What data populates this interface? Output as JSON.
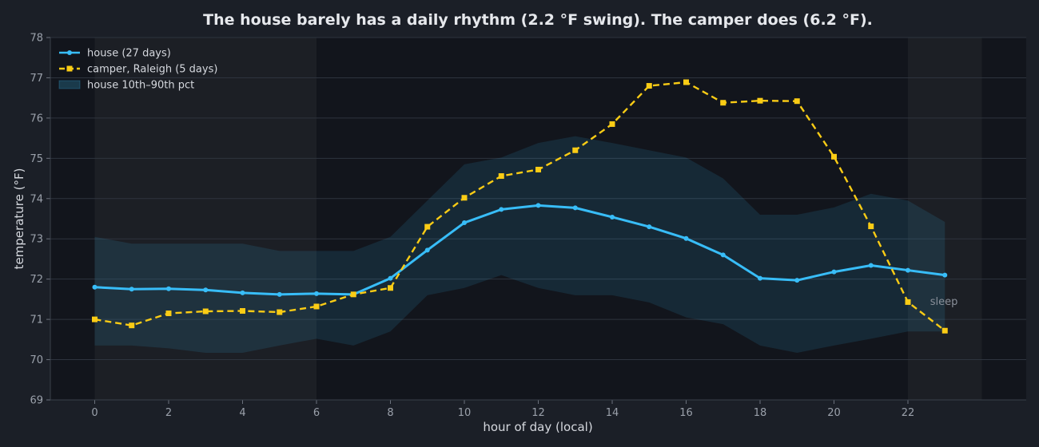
{
  "chart_data": {
    "type": "line",
    "title": "The house barely has a daily rhythm (2.2 °F swing). The camper does (6.2 °F).",
    "xlabel": "hour of day (local)",
    "ylabel": "temperature (°F)",
    "xlim": [
      -1.2,
      25.2
    ],
    "ylim": [
      69,
      78
    ],
    "x_ticks": [
      0,
      2,
      4,
      6,
      8,
      10,
      12,
      14,
      16,
      18,
      20,
      22
    ],
    "y_ticks": [
      69,
      70,
      71,
      72,
      73,
      74,
      75,
      76,
      77,
      78
    ],
    "grid": "horizontal",
    "legend_position": "top-left",
    "x": [
      0,
      1,
      2,
      3,
      4,
      5,
      6,
      7,
      8,
      9,
      10,
      11,
      12,
      13,
      14,
      15,
      16,
      17,
      18,
      19,
      20,
      21,
      22,
      23
    ],
    "series": [
      {
        "name": "house (27 days)",
        "color": "#38bdf8",
        "style": "solid",
        "marker": "circle",
        "values": [
          71.8,
          71.75,
          71.76,
          71.73,
          71.66,
          71.62,
          71.64,
          71.62,
          72.02,
          72.72,
          73.4,
          73.73,
          73.83,
          73.77,
          73.54,
          73.3,
          73.01,
          72.6,
          72.02,
          71.97,
          72.18,
          72.34,
          72.22,
          72.1
        ]
      },
      {
        "name": "camper, Raleigh (5 days)",
        "color": "#facc15",
        "style": "dashed",
        "marker": "square",
        "values": [
          71.0,
          70.85,
          71.15,
          71.2,
          71.21,
          71.18,
          71.32,
          71.62,
          71.78,
          73.3,
          74.02,
          74.56,
          74.72,
          75.2,
          75.85,
          76.8,
          76.89,
          76.38,
          76.43,
          76.42,
          75.04,
          73.31,
          71.43,
          70.72
        ]
      }
    ],
    "band": {
      "name": "house 10th–90th pct",
      "color": "#38bdf8",
      "opacity": 0.12,
      "lower": [
        70.35,
        70.35,
        70.28,
        70.17,
        70.17,
        70.35,
        70.52,
        70.35,
        70.7,
        71.6,
        71.78,
        72.1,
        71.78,
        71.6,
        71.6,
        71.42,
        71.05,
        70.88,
        70.35,
        70.17,
        70.35,
        70.52,
        70.7,
        70.7
      ],
      "upper": [
        73.05,
        72.88,
        72.88,
        72.88,
        72.88,
        72.7,
        72.7,
        72.7,
        73.05,
        73.95,
        74.85,
        75.02,
        75.38,
        75.55,
        75.38,
        75.2,
        75.02,
        74.5,
        73.6,
        73.6,
        73.78,
        74.12,
        73.95,
        73.42
      ]
    },
    "shaded_regions": [
      {
        "from": 0,
        "to": 6
      },
      {
        "from": 22,
        "to": 24
      }
    ],
    "annotations": [
      {
        "text": "sleep",
        "x": 22.6,
        "y": 71.45
      }
    ]
  }
}
